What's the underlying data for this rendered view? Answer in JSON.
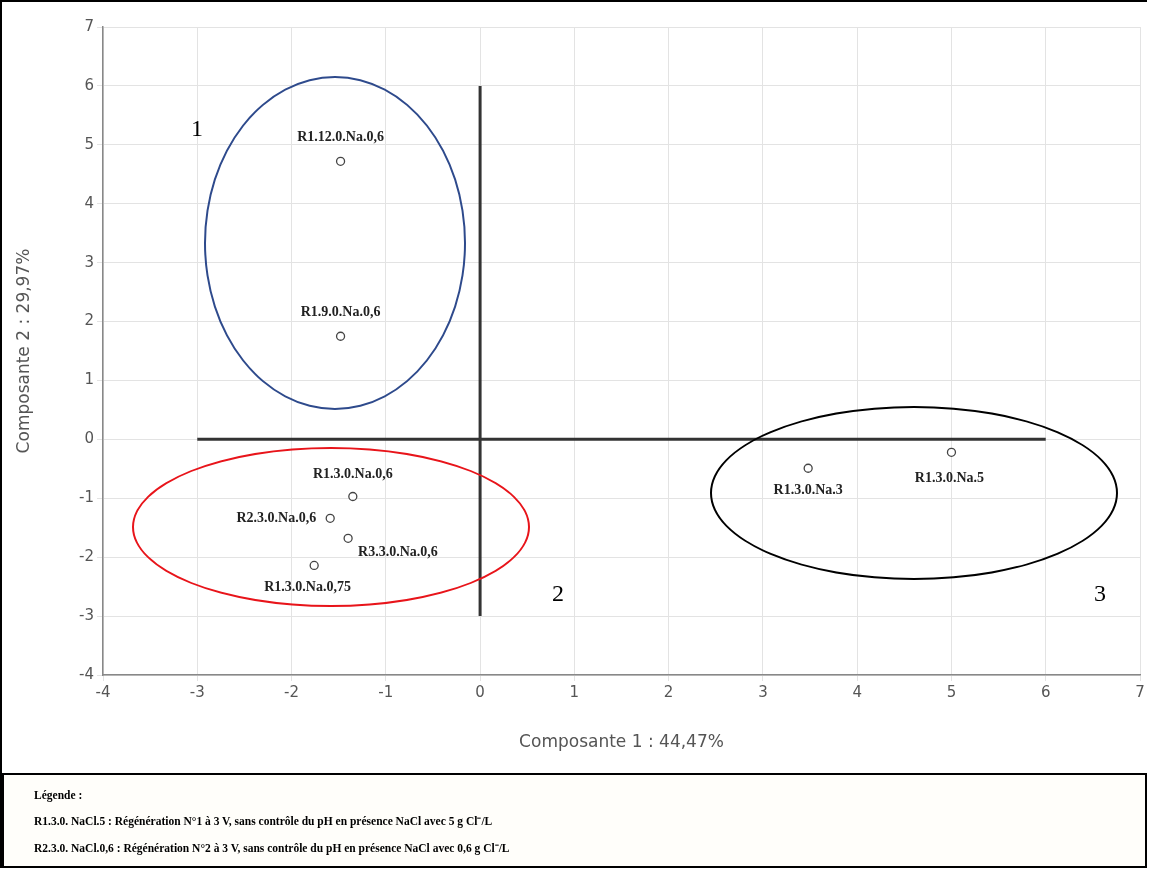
{
  "chart_data": {
    "type": "scatter",
    "xlabel": "Composante 1 : 44,47%",
    "ylabel": "Composante 2 : 29,97%",
    "xlim": [
      -4,
      7
    ],
    "xticks": [
      -4,
      -3,
      -2,
      -1,
      0,
      1,
      2,
      3,
      4,
      5,
      6,
      7
    ],
    "ylim": [
      -4,
      7
    ],
    "yticks": [
      -4,
      -3,
      -2,
      -1,
      0,
      1,
      2,
      3,
      4,
      5,
      6,
      7
    ],
    "grid": true,
    "marker": "circle",
    "legend": false,
    "series": [
      {
        "name": "R1.12.0.Na.0,6",
        "color": "#444444",
        "x": [
          -1.48
        ],
        "values": [
          4.72
        ]
      },
      {
        "name": "R1.9.0.Na.0,6",
        "color": "#444444",
        "x": [
          -1.48
        ],
        "values": [
          1.75
        ]
      },
      {
        "name": "R1.3.0.Na.0,6",
        "color": "#444444",
        "x": [
          -1.35
        ],
        "values": [
          -0.97
        ]
      },
      {
        "name": "R2.3.0.Na.0,6",
        "color": "#444444",
        "x": [
          -1.59
        ],
        "values": [
          -1.34
        ]
      },
      {
        "name": "R3.3.0.Na.0,6",
        "color": "#444444",
        "x": [
          -1.4
        ],
        "values": [
          -1.68
        ]
      },
      {
        "name": "R1.3.0.Na.0,75",
        "color": "#444444",
        "x": [
          -1.76
        ],
        "values": [
          -2.14
        ]
      },
      {
        "name": "R1.3.0.Na.3",
        "color": "#444444",
        "x": [
          3.48
        ],
        "values": [
          -0.49
        ]
      },
      {
        "name": "R1.3.0.Na.5",
        "color": "#444444",
        "x": [
          5.0
        ],
        "values": [
          -0.22
        ]
      },
      {
        "type": "line",
        "marker": "none",
        "color": "#333333",
        "x": [
          -3,
          6
        ],
        "values": [
          0,
          0
        ]
      },
      {
        "type": "line",
        "marker": "none",
        "color": "#333333",
        "x": [
          0,
          0
        ],
        "values": [
          -3,
          6
        ]
      }
    ],
    "annotations": [
      "1",
      "2",
      "3",
      "Légende :",
      "R1.3.0. NaCl.5 : Régénération N°1 à 3 V, sans contrôle du pH en présence NaCl avec 5 g Cl⁻/L",
      "R2.3.0. NaCl.0,6 : Régénération N°2 à 3 V, sans contrôle du pH en présence NaCl avec 0,6 g Cl⁻/L"
    ]
  }
}
